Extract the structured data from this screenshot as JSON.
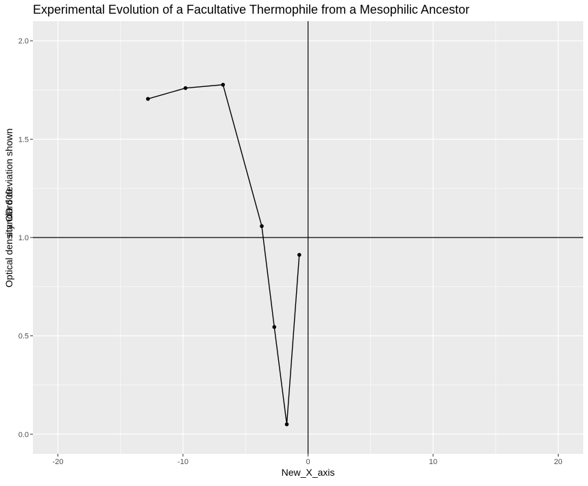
{
  "chart_data": {
    "type": "line",
    "title": "Experimental Evolution of a Facultative Thermophile from a Mesophilic Ancestor",
    "xlabel": "New_X_axis",
    "ylabel_line1": "Optical density OD 600",
    "ylabel_line2": "standard deviation shown",
    "xlim": [
      -22,
      22
    ],
    "ylim": [
      -0.1,
      2.1
    ],
    "x_ticks": [
      -20,
      -10,
      0,
      10,
      20
    ],
    "x_tick_labels": [
      "-20",
      "-10",
      "0",
      "10",
      "20"
    ],
    "y_ticks": [
      0.0,
      0.5,
      1.0,
      1.5,
      2.0
    ],
    "y_tick_labels": [
      "0.0",
      "0.5",
      "1.0",
      "1.5",
      "2.0"
    ],
    "grid": true,
    "reference_lines": {
      "vertical_x": 0,
      "horizontal_y": 1.0
    },
    "series": [
      {
        "x": [
          -12.8,
          -9.8,
          -6.8,
          -3.7,
          -2.7,
          -1.7,
          -0.7
        ],
        "y": [
          1.705,
          1.76,
          1.777,
          1.058,
          0.545,
          0.05,
          0.912
        ]
      }
    ],
    "colors": {
      "panel_background": "#ebebeb",
      "grid_major": "#ffffff",
      "line": "#000000",
      "point": "#000000",
      "tick_text": "#4d4d4d"
    }
  }
}
